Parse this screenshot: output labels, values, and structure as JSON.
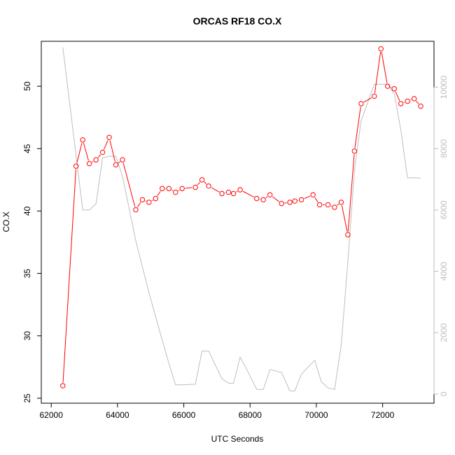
{
  "chart_data": {
    "type": "line",
    "title": "ORCAS RF18 CO.X",
    "xlabel": "UTC Seconds",
    "ylabel": "CO.X",
    "xlim": [
      61700,
      73550
    ],
    "ylim": [
      24.6,
      53.6
    ],
    "y2lim": [
      -300,
      11500
    ],
    "x_ticks": [
      62000,
      64000,
      66000,
      68000,
      70000,
      72000
    ],
    "y_ticks": [
      25,
      30,
      35,
      40,
      45,
      50
    ],
    "y2_ticks": [
      0,
      2000,
      4000,
      6000,
      8000,
      10000
    ],
    "grid": false,
    "colors": {
      "primary": "#ff0000",
      "secondary": "#bebebe",
      "axis": "#000000"
    },
    "series": [
      {
        "role": "primary",
        "style": "line+circles",
        "x": [
          62350,
          62750,
          62950,
          63150,
          63350,
          63550,
          63750,
          63950,
          64150,
          64550,
          64750,
          64950,
          65150,
          65350,
          65550,
          65750,
          65950,
          66350,
          66550,
          66750,
          67150,
          67350,
          67500,
          67700,
          68200,
          68400,
          68600,
          68950,
          69200,
          69350,
          69550,
          69900,
          70100,
          70350,
          70550,
          70750,
          70950,
          71150,
          71350,
          71750,
          71950,
          72150,
          72350,
          72550,
          72750,
          72950,
          73150
        ],
        "y": [
          26.0,
          43.6,
          45.7,
          43.8,
          44.1,
          44.7,
          45.9,
          43.7,
          44.1,
          40.1,
          40.9,
          40.7,
          41.0,
          41.8,
          41.8,
          41.5,
          41.8,
          41.9,
          42.5,
          42.0,
          41.4,
          41.5,
          41.4,
          41.7,
          41.0,
          40.9,
          41.3,
          40.6,
          40.7,
          40.8,
          40.9,
          41.3,
          40.5,
          40.5,
          40.3,
          40.7,
          38.1,
          44.8,
          48.6,
          49.2,
          53.0,
          50.0,
          49.8,
          48.6,
          48.8,
          49.0,
          48.4
        ]
      },
      {
        "role": "secondary",
        "style": "line",
        "x": [
          62350,
          62950,
          63150,
          63350,
          63550,
          63750,
          63950,
          64150,
          64550,
          64950,
          65350,
          65550,
          65750,
          65950,
          66350,
          66550,
          66750,
          67150,
          67350,
          67500,
          67700,
          67900,
          68200,
          68400,
          68600,
          68950,
          69200,
          69350,
          69550,
          69950,
          70150,
          70350,
          70550,
          70750,
          70950,
          71150,
          71350,
          71750,
          71950,
          72150,
          72350,
          72550,
          72750,
          72950,
          73150
        ],
        "y": [
          11300,
          6000,
          6000,
          6200,
          7700,
          7750,
          7750,
          7100,
          5000,
          3300,
          1750,
          1000,
          300,
          300,
          320,
          1400,
          1400,
          500,
          350,
          350,
          1200,
          800,
          150,
          150,
          800,
          700,
          100,
          100,
          650,
          1100,
          400,
          200,
          150,
          1600,
          4300,
          7300,
          8900,
          10100,
          10100,
          10100,
          9800,
          8600,
          7050,
          7050,
          7040
        ]
      }
    ]
  }
}
